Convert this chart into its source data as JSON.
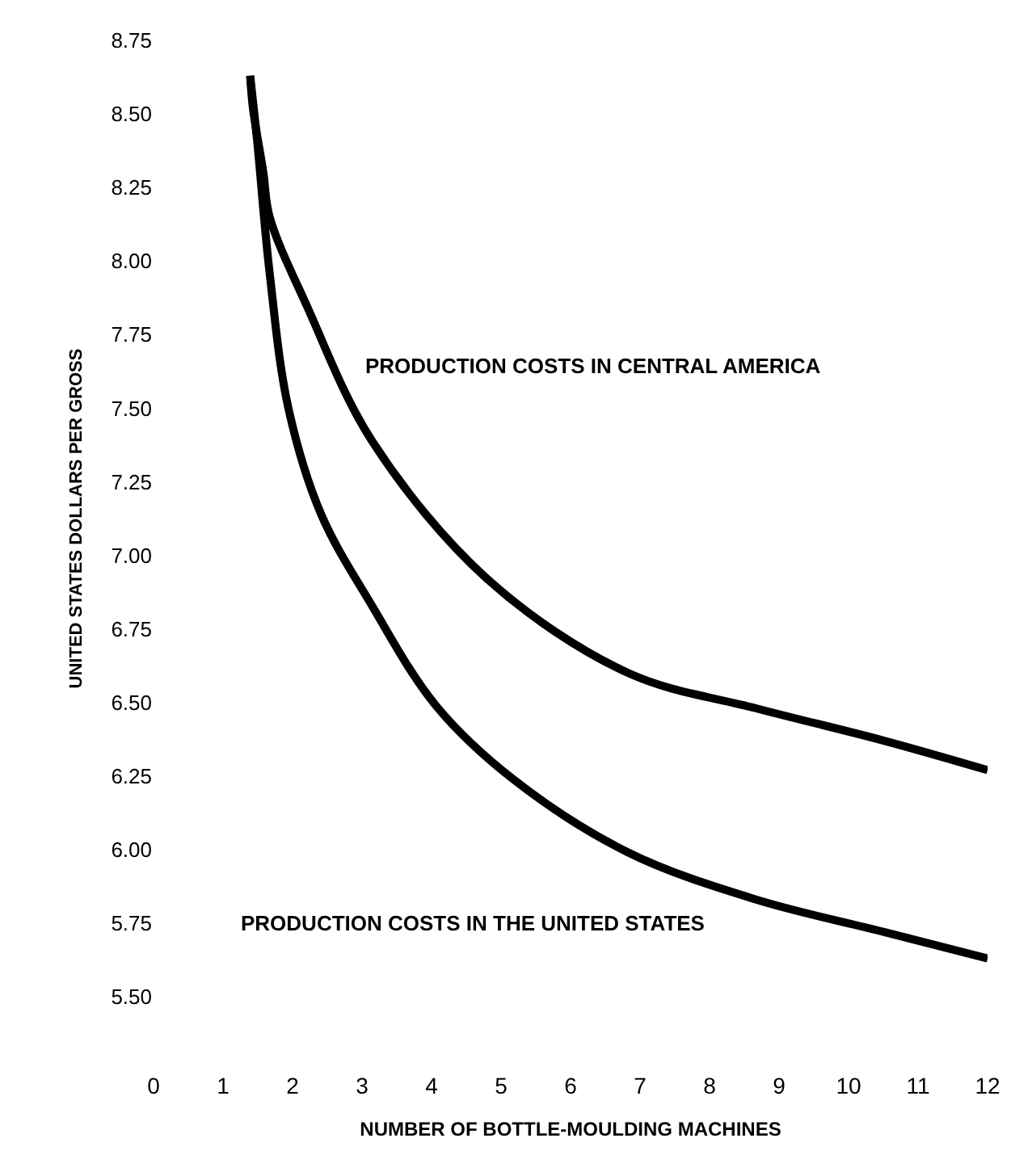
{
  "chart_data": {
    "type": "line",
    "xlabel": "NUMBER OF BOTTLE-MOULDING MACHINES",
    "ylabel": "UNITED STATES DOLLARS PER GROSS",
    "xlim": [
      0,
      12
    ],
    "xticks": [
      0,
      1,
      2,
      3,
      4,
      5,
      6,
      7,
      8,
      9,
      10,
      11,
      12
    ],
    "ylim": [
      5.5,
      8.75
    ],
    "yticks": [
      {
        "value": 8.75,
        "label": "8.75"
      },
      {
        "value": 8.5,
        "label": "8.50"
      },
      {
        "value": 8.25,
        "label": "8.25"
      },
      {
        "value": 8.0,
        "label": "8.00"
      },
      {
        "value": 7.75,
        "label": "7.75"
      },
      {
        "value": 7.5,
        "label": "7.50"
      },
      {
        "value": 7.25,
        "label": "7.25"
      },
      {
        "value": 7.0,
        "label": "7.00"
      },
      {
        "value": 6.75,
        "label": "6.75"
      },
      {
        "value": 6.5,
        "label": "6.50"
      },
      {
        "value": 6.25,
        "label": "6.25"
      },
      {
        "value": 6.0,
        "label": "6.00"
      },
      {
        "value": 5.75,
        "label": "5.75"
      },
      {
        "value": 5.5,
        "label": "5.50"
      }
    ],
    "legend": false,
    "marker": "none",
    "line_style": "solid",
    "series": [
      {
        "name": "PRODUCTION COSTS IN CENTRAL AMERICA",
        "color": "#000000",
        "x": [
          1.39,
          1.43,
          1.58,
          1.67,
          2.22,
          3.14,
          4.8,
          6.83,
          8.67,
          10.51,
          12.0
        ],
        "values": [
          8.63,
          8.52,
          8.3,
          8.15,
          7.84,
          7.39,
          6.92,
          6.6,
          6.48,
          6.37,
          6.27
        ]
      },
      {
        "name": "PRODUCTION COSTS IN THE UNITED STATES",
        "color": "#000000",
        "x": [
          1.39,
          1.49,
          1.67,
          1.94,
          2.41,
          3.14,
          4.06,
          5.17,
          6.83,
          8.67,
          10.51,
          12.0
        ],
        "values": [
          8.63,
          8.41,
          7.96,
          7.5,
          7.14,
          6.83,
          6.49,
          6.24,
          5.99,
          5.83,
          5.72,
          5.63
        ]
      }
    ]
  }
}
